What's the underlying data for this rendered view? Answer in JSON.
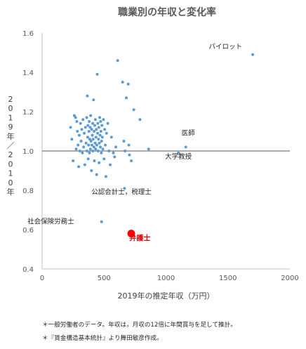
{
  "chart_data": {
    "type": "scatter",
    "title": "職業別の年収と変化率",
    "xlabel": "2019年の推定年収（万円）",
    "ylabel": "2019年／2010年",
    "xlim": [
      0,
      2000
    ],
    "ylim": [
      0.4,
      1.6
    ],
    "x_ticks": [
      "0",
      "500",
      "1000",
      "1500",
      "2000"
    ],
    "y_ticks": [
      "0.4",
      "0.6",
      "0.8",
      "1.0",
      "1.2",
      "1.4",
      "1.6"
    ],
    "reference_line_y": 1.0,
    "grid": false,
    "point_color": "#5b9bd5",
    "highlight_color": "#ff0000",
    "points": [
      [
        230,
        1.12
      ],
      [
        240,
        1.06
      ],
      [
        250,
        0.95
      ],
      [
        260,
        1.18
      ],
      [
        270,
        1.17
      ],
      [
        275,
        1.01
      ],
      [
        280,
        1.15
      ],
      [
        285,
        1.1
      ],
      [
        290,
        1.03
      ],
      [
        295,
        0.92
      ],
      [
        300,
        1.08
      ],
      [
        305,
        1.0
      ],
      [
        310,
        1.14
      ],
      [
        315,
        1.05
      ],
      [
        320,
        1.11
      ],
      [
        325,
        0.99
      ],
      [
        330,
        1.16
      ],
      [
        335,
        1.02
      ],
      [
        340,
        1.09
      ],
      [
        345,
        0.93
      ],
      [
        350,
        1.12
      ],
      [
        355,
        1.04
      ],
      [
        360,
        1.17
      ],
      [
        362,
        1.0
      ],
      [
        365,
        1.28
      ],
      [
        368,
        1.07
      ],
      [
        370,
        1.13
      ],
      [
        372,
        0.96
      ],
      [
        375,
        1.03
      ],
      [
        378,
        1.1
      ],
      [
        380,
        1.15
      ],
      [
        382,
        0.99
      ],
      [
        385,
        1.06
      ],
      [
        388,
        1.12
      ],
      [
        390,
        1.01
      ],
      [
        392,
        1.18
      ],
      [
        395,
        1.05
      ],
      [
        398,
        0.9
      ],
      [
        400,
        1.11
      ],
      [
        402,
        1.03
      ],
      [
        405,
        1.08
      ],
      [
        408,
        1.14
      ],
      [
        410,
        1.0
      ],
      [
        412,
        1.06
      ],
      [
        415,
        1.26
      ],
      [
        418,
        1.02
      ],
      [
        420,
        1.1
      ],
      [
        422,
        0.95
      ],
      [
        425,
        1.13
      ],
      [
        428,
        1.04
      ],
      [
        430,
        1.16
      ],
      [
        432,
        1.01
      ],
      [
        435,
        1.07
      ],
      [
        438,
        1.11
      ],
      [
        440,
        0.88
      ],
      [
        442,
        1.03
      ],
      [
        445,
        1.39
      ],
      [
        448,
        1.09
      ],
      [
        450,
        1.14
      ],
      [
        452,
        1.0
      ],
      [
        455,
        1.06
      ],
      [
        458,
        1.12
      ],
      [
        460,
        0.94
      ],
      [
        462,
        1.04
      ],
      [
        465,
        1.17
      ],
      [
        468,
        1.08
      ],
      [
        470,
        1.02
      ],
      [
        472,
        1.15
      ],
      [
        475,
        1.1
      ],
      [
        478,
        0.99
      ],
      [
        480,
        1.05
      ],
      [
        483,
        1.13
      ],
      [
        486,
        1.07
      ],
      [
        490,
        1.01
      ],
      [
        495,
        1.16
      ],
      [
        500,
        0.96
      ],
      [
        505,
        1.11
      ],
      [
        510,
        1.03
      ],
      [
        515,
        0.87
      ],
      [
        520,
        1.09
      ],
      [
        530,
        1.14
      ],
      [
        540,
        1.0
      ],
      [
        550,
        0.93
      ],
      [
        560,
        1.07
      ],
      [
        575,
        0.99
      ],
      [
        585,
        0.97
      ],
      [
        595,
        1.02
      ],
      [
        610,
        1.46
      ],
      [
        650,
        1.35
      ],
      [
        660,
        1.05
      ],
      [
        665,
        0.81
      ],
      [
        670,
        1.0
      ],
      [
        680,
        1.27
      ],
      [
        695,
        1.34
      ],
      [
        700,
        1.03
      ],
      [
        705,
        0.98
      ],
      [
        720,
        0.95
      ],
      [
        740,
        1.21
      ],
      [
        790,
        1.16
      ],
      [
        860,
        1.01
      ],
      [
        480,
        0.64
      ],
      [
        1100,
        0.99
      ],
      [
        1160,
        1.02
      ],
      [
        1700,
        1.49
      ]
    ],
    "highlight": {
      "x": 720,
      "y": 0.58
    },
    "annotations": [
      {
        "text": "パイロット",
        "x": 1480,
        "y": 1.52
      },
      {
        "text": "医師",
        "x": 1180,
        "y": 1.08
      },
      {
        "text": "大学教授",
        "x": 1100,
        "y": 0.96
      },
      {
        "text": "公認会計士，税理士",
        "x": 640,
        "y": 0.78
      },
      {
        "text": "社会保険労務士",
        "x": 70,
        "y": 0.63
      }
    ],
    "highlight_label": {
      "text": "弁護士",
      "x": 790,
      "y": 0.545
    }
  },
  "notes": [
    "＊一般労働者のデータ。年収は，月収の12倍に年間賞与を足して推計。",
    "＊『賃金構造基本統計』より舞田敏彦作成。"
  ]
}
